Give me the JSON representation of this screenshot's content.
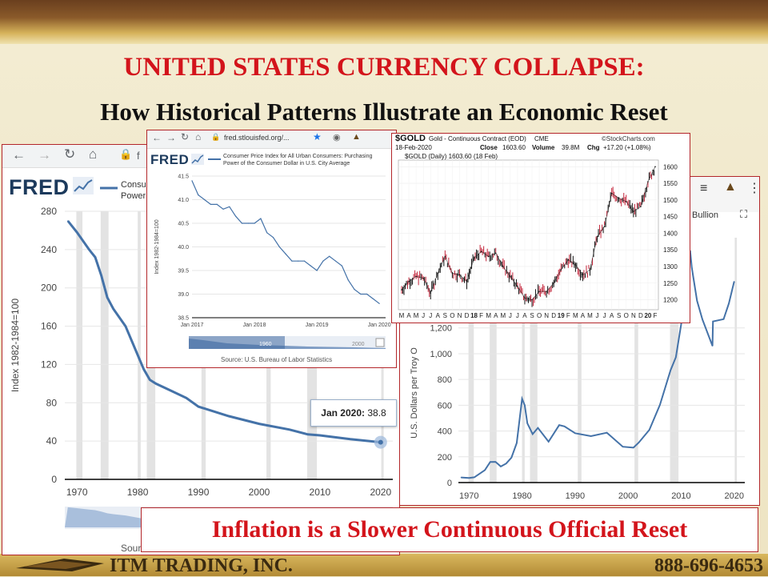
{
  "slide": {
    "title": "UNITED STATES CURRENCY COLLAPSE:",
    "subtitle": "How Historical Patterns Illustrate an Economic Reset",
    "banner": "Inflation is a Slower Continuous Official Reset",
    "company": "ITM TRADING, INC.",
    "phone": "888-696-4653"
  },
  "colors": {
    "title_red": "#d3141b",
    "line_blue": "#4472a8",
    "frame_red": "#b3262a"
  },
  "fred_large": {
    "logo": "FRED",
    "legend": "Consumer Price Index for All Urban Consumers: Purchasing Power of the Consumer Dollar in U.S. City Average",
    "legend_visible": "Consum",
    "legend_visible2": "Power o",
    "url_visible": "f",
    "tooltip_date": "Jan 2020:",
    "tooltip_value": "38.8",
    "source_visible": "Sour"
  },
  "fred_small": {
    "logo": "FRED",
    "url": "fred.stlouisfed.org/...",
    "legend_line1": "Consumer Price Index for All Urban Consumers: Purchasing",
    "legend_line2": "Power of the Consumer Dollar in U.S. City Average",
    "source": "Source: U.S. Bureau of Labor Statistics",
    "mini_label1": "1960",
    "mini_label2": "2000"
  },
  "gold_panel": {
    "symbol": "$GOLD",
    "description": "Gold - Continuous Contract (EOD)",
    "exchange": "CME",
    "brand": "©StockCharts.com",
    "date": "18-Feb-2020",
    "close_label": "Close",
    "close": "1603.60",
    "volume_label": "Volume",
    "volume": "39.8M",
    "chg_label": "Chg",
    "chg": "+17.20 (+1.08%)",
    "legend": "$GOLD (Daily) 1603.60 (18 Feb)"
  },
  "gold_large": {
    "title_visible": "Bullion",
    "ylabel_visible": "U.S. Dollars per Troy O"
  },
  "chart_data": [
    {
      "type": "line",
      "name": "fred_large",
      "ylabel": "Index 1982-1984=100",
      "xlim": [
        1968,
        2022
      ],
      "ylim": [
        0,
        280
      ],
      "yticks": [
        0,
        40,
        80,
        120,
        160,
        200,
        240,
        280
      ],
      "xticks": [
        1970,
        1980,
        1990,
        2000,
        2010,
        2020
      ],
      "x": [
        1968.5,
        1970,
        1972,
        1973,
        1974,
        1975,
        1976,
        1978,
        1980,
        1981,
        1982,
        1983,
        1985,
        1988,
        1990,
        1995,
        2000,
        2005,
        2008,
        2010,
        2015,
        2020
      ],
      "y": [
        270,
        258,
        240,
        232,
        213,
        190,
        178,
        160,
        130,
        115,
        104,
        100,
        94,
        85,
        76,
        66,
        58,
        52,
        47,
        46,
        42,
        38.8
      ],
      "recessions": [
        [
          1969.9,
          1970.9
        ],
        [
          1973.9,
          1975.2
        ],
        [
          1980.0,
          1980.5
        ],
        [
          1981.5,
          1982.9
        ],
        [
          1990.5,
          1991.2
        ],
        [
          2001.2,
          2001.9
        ],
        [
          2007.9,
          2009.5
        ],
        [
          2020.1,
          2020.5
        ]
      ]
    },
    {
      "type": "line",
      "name": "fred_small",
      "ylabel": "Index 1982-1984=100",
      "xlim": [
        2017.0,
        2020.1
      ],
      "ylim": [
        38.5,
        41.5
      ],
      "yticks": [
        38.5,
        39.0,
        39.5,
        40.0,
        40.5,
        41.0,
        41.5
      ],
      "yticklabels": [
        "38.5",
        "39.0",
        "39.5",
        "40.0",
        "40.5",
        "41.0",
        "41.5"
      ],
      "xticks": [
        2017,
        2018,
        2019,
        2020
      ],
      "xticklabels": [
        "Jan 2017",
        "Jan 2018",
        "Jan 2019",
        "Jan 2020"
      ],
      "x": [
        2017.0,
        2017.1,
        2017.2,
        2017.3,
        2017.4,
        2017.5,
        2017.6,
        2017.7,
        2017.8,
        2017.9,
        2018.0,
        2018.1,
        2018.2,
        2018.3,
        2018.4,
        2018.5,
        2018.6,
        2018.7,
        2018.8,
        2018.9,
        2019.0,
        2019.1,
        2019.2,
        2019.3,
        2019.4,
        2019.5,
        2019.6,
        2019.7,
        2019.8,
        2019.9,
        2020.0
      ],
      "y": [
        41.4,
        41.1,
        41.0,
        40.9,
        40.9,
        40.8,
        40.85,
        40.65,
        40.5,
        40.5,
        40.5,
        40.6,
        40.3,
        40.2,
        40.0,
        39.85,
        39.7,
        39.7,
        39.7,
        39.6,
        39.5,
        39.7,
        39.8,
        39.7,
        39.6,
        39.3,
        39.1,
        39.0,
        39.0,
        38.9,
        38.8
      ]
    },
    {
      "type": "line",
      "name": "gold_daily",
      "ylim": [
        1170,
        1620
      ],
      "yticks": [
        1200,
        1250,
        1300,
        1350,
        1400,
        1450,
        1500,
        1550,
        1600
      ],
      "xticklabels": [
        "M",
        "A",
        "M",
        "J",
        "J",
        "A",
        "S",
        "O",
        "N",
        "D",
        "18",
        "F",
        "M",
        "A",
        "M",
        "J",
        "J",
        "A",
        "S",
        "O",
        "N",
        "D",
        "19",
        "F",
        "M",
        "A",
        "M",
        "J",
        "J",
        "A",
        "S",
        "O",
        "N",
        "D",
        "20",
        "F"
      ],
      "x": [
        0,
        1,
        2,
        3,
        4,
        5,
        6,
        7,
        8,
        9,
        10,
        11,
        12,
        13,
        14,
        15,
        16,
        17,
        18,
        19,
        20,
        21,
        22,
        23,
        24,
        25,
        26,
        27,
        28,
        29,
        30,
        31,
        32,
        33,
        34,
        35
      ],
      "y": [
        1230,
        1255,
        1270,
        1265,
        1220,
        1280,
        1330,
        1280,
        1275,
        1255,
        1325,
        1345,
        1330,
        1340,
        1300,
        1270,
        1240,
        1205,
        1200,
        1225,
        1225,
        1250,
        1290,
        1320,
        1305,
        1275,
        1290,
        1390,
        1420,
        1520,
        1505,
        1495,
        1465,
        1480,
        1555,
        1600
      ]
    },
    {
      "type": "line",
      "name": "gold_bullion",
      "ylabel": "U.S. Dollars per Troy O",
      "xlim": [
        1968,
        2022
      ],
      "ylim": [
        0,
        1900
      ],
      "yticks": [
        0,
        200,
        400,
        600,
        800,
        1000,
        1200
      ],
      "yticklabels": [
        "0",
        "200",
        "400",
        "600",
        "800",
        "1,000",
        "1,200"
      ],
      "xticks": [
        1970,
        1980,
        1990,
        2000,
        2010,
        2020
      ],
      "x": [
        1968.5,
        1970,
        1971,
        1973,
        1974,
        1975,
        1976,
        1977,
        1978,
        1979,
        1980,
        1980.5,
        1981,
        1982,
        1983,
        1985,
        1987,
        1988,
        1990,
        1993,
        1996,
        1999,
        2001,
        2002,
        2004,
        2006,
        2008,
        2009,
        2010,
        2011,
        2011.7,
        2012,
        2013,
        2014,
        2015.9,
        2016,
        2018,
        2019,
        2020
      ],
      "y": [
        40,
        36,
        41,
        97,
        160,
        161,
        125,
        148,
        193,
        307,
        650,
        600,
        460,
        376,
        424,
        317,
        446,
        436,
        383,
        360,
        387,
        278,
        271,
        310,
        409,
        603,
        872,
        972,
        1225,
        1571,
        1800,
        1669,
        1411,
        1266,
        1060,
        1250,
        1268,
        1390,
        1560
      ]
    }
  ]
}
